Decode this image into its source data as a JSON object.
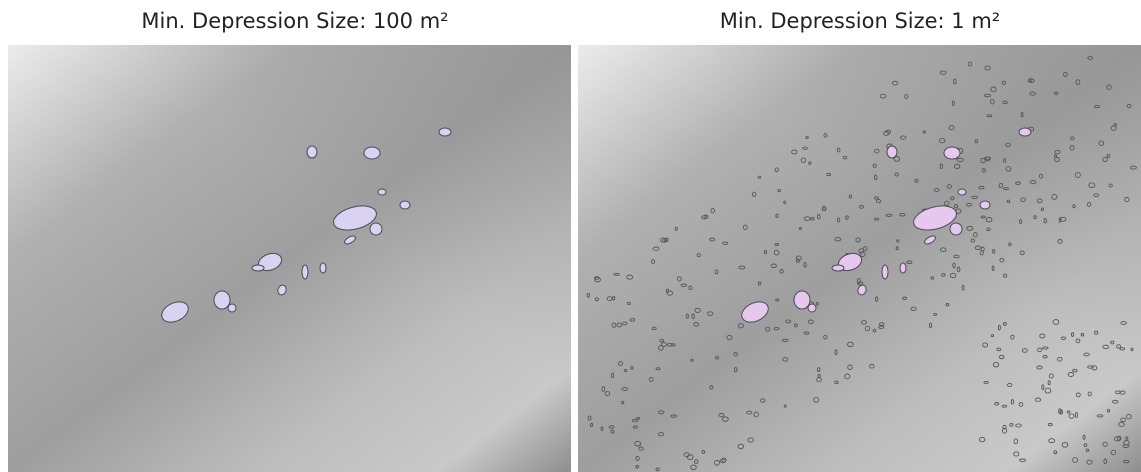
{
  "panels": [
    {
      "title": "Min. Depression Size: 100 m²"
    },
    {
      "title": "Min. Depression Size: 1 m²"
    }
  ]
}
